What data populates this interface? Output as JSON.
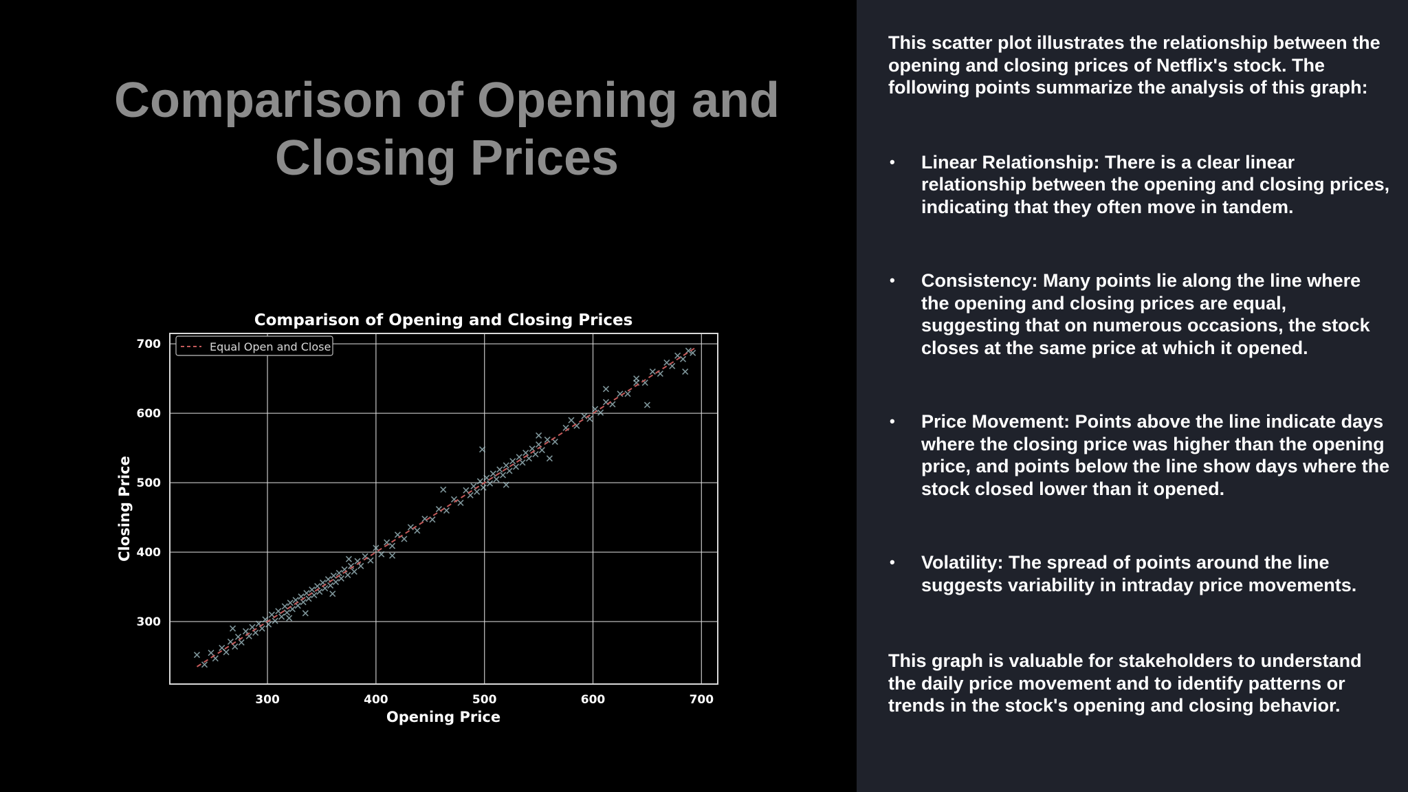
{
  "slide": {
    "title": "Comparison of Opening and Closing Prices"
  },
  "description": {
    "intro": "This scatter plot illustrates the relationship between the opening and closing prices of Netflix's stock. The following points summarize the analysis of this graph:",
    "bullets": [
      "Linear Relationship: There is a clear linear relationship between the opening and closing prices, indicating that they often move in tandem.",
      "Consistency: Many points lie along the line where the opening and closing prices are equal, suggesting that on numerous occasions, the stock closes at the same price at which it opened.",
      "Price Movement: Points above the line indicate days where the closing price was higher than the opening price, and points below the line show days where the stock closed lower than it opened.",
      "Volatility: The spread of points around the line suggests variability in intraday price movements."
    ],
    "bullet_symbol": "•",
    "outro": "This graph is valuable for stakeholders to understand the daily price movement and to identify patterns or trends in the stock's opening and closing behavior."
  },
  "colors": {
    "background": "#000000",
    "panel": "#1f222b",
    "title": "#8c8c8c",
    "text": "#ffffff",
    "points": "#a9c8cf",
    "reference_line": "#c45a5a",
    "grid": "#d9d9d9"
  },
  "chart_data": {
    "type": "scatter",
    "title": "Comparison of Opening and Closing Prices",
    "xlabel": "Opening Price",
    "ylabel": "Closing Price",
    "xlim": [
      210,
      715
    ],
    "ylim": [
      210,
      715
    ],
    "xticks": [
      300,
      400,
      500,
      600,
      700
    ],
    "yticks": [
      300,
      400,
      500,
      600,
      700
    ],
    "grid": true,
    "legend": {
      "position": "top-left",
      "entries": [
        "Equal Open and Close"
      ]
    },
    "marker": "x",
    "reference_line": {
      "name": "Equal Open and Close",
      "style": "dashed",
      "from": [
        235,
        235
      ],
      "to": [
        695,
        695
      ]
    },
    "points": [
      [
        235,
        252
      ],
      [
        242,
        238
      ],
      [
        248,
        255
      ],
      [
        252,
        247
      ],
      [
        258,
        262
      ],
      [
        262,
        256
      ],
      [
        266,
        271
      ],
      [
        270,
        264
      ],
      [
        273,
        278
      ],
      [
        276,
        270
      ],
      [
        280,
        286
      ],
      [
        283,
        279
      ],
      [
        286,
        292
      ],
      [
        289,
        284
      ],
      [
        292,
        297
      ],
      [
        295,
        290
      ],
      [
        298,
        303
      ],
      [
        301,
        296
      ],
      [
        304,
        310
      ],
      [
        307,
        301
      ],
      [
        310,
        315
      ],
      [
        313,
        307
      ],
      [
        316,
        322
      ],
      [
        318,
        313
      ],
      [
        321,
        327
      ],
      [
        323,
        318
      ],
      [
        326,
        331
      ],
      [
        328,
        323
      ],
      [
        331,
        336
      ],
      [
        333,
        328
      ],
      [
        336,
        341
      ],
      [
        338,
        333
      ],
      [
        341,
        346
      ],
      [
        343,
        338
      ],
      [
        346,
        351
      ],
      [
        348,
        343
      ],
      [
        351,
        356
      ],
      [
        353,
        348
      ],
      [
        356,
        361
      ],
      [
        358,
        352
      ],
      [
        361,
        366
      ],
      [
        363,
        357
      ],
      [
        366,
        370
      ],
      [
        368,
        362
      ],
      [
        371,
        375
      ],
      [
        374,
        367
      ],
      [
        377,
        380
      ],
      [
        380,
        372
      ],
      [
        383,
        387
      ],
      [
        386,
        380
      ],
      [
        390,
        394
      ],
      [
        395,
        388
      ],
      [
        400,
        406
      ],
      [
        405,
        397
      ],
      [
        410,
        414
      ],
      [
        415,
        409
      ],
      [
        420,
        425
      ],
      [
        426,
        419
      ],
      [
        432,
        436
      ],
      [
        438,
        431
      ],
      [
        445,
        448
      ],
      [
        452,
        447
      ],
      [
        458,
        462
      ],
      [
        465,
        460
      ],
      [
        472,
        476
      ],
      [
        478,
        471
      ],
      [
        483,
        489
      ],
      [
        487,
        482
      ],
      [
        490,
        495
      ],
      [
        493,
        487
      ],
      [
        496,
        502
      ],
      [
        499,
        493
      ],
      [
        502,
        507
      ],
      [
        505,
        499
      ],
      [
        508,
        513
      ],
      [
        511,
        505
      ],
      [
        514,
        519
      ],
      [
        517,
        511
      ],
      [
        520,
        525
      ],
      [
        523,
        517
      ],
      [
        526,
        531
      ],
      [
        529,
        523
      ],
      [
        532,
        537
      ],
      [
        535,
        529
      ],
      [
        538,
        543
      ],
      [
        541,
        535
      ],
      [
        544,
        549
      ],
      [
        547,
        541
      ],
      [
        550,
        555
      ],
      [
        553,
        547
      ],
      [
        558,
        562
      ],
      [
        565,
        559
      ],
      [
        575,
        579
      ],
      [
        585,
        582
      ],
      [
        592,
        596
      ],
      [
        597,
        592
      ],
      [
        602,
        606
      ],
      [
        607,
        601
      ],
      [
        612,
        616
      ],
      [
        618,
        613
      ],
      [
        625,
        628
      ],
      [
        632,
        628
      ],
      [
        640,
        644
      ],
      [
        648,
        644
      ],
      [
        655,
        660
      ],
      [
        662,
        657
      ],
      [
        668,
        673
      ],
      [
        673,
        668
      ],
      [
        678,
        683
      ],
      [
        683,
        678
      ],
      [
        688,
        690
      ],
      [
        692,
        687
      ],
      [
        268,
        290
      ],
      [
        320,
        305
      ],
      [
        360,
        340
      ],
      [
        375,
        390
      ],
      [
        415,
        395
      ],
      [
        462,
        490
      ],
      [
        498,
        548
      ],
      [
        520,
        497
      ],
      [
        560,
        535
      ],
      [
        580,
        590
      ],
      [
        612,
        635
      ],
      [
        650,
        612
      ],
      [
        685,
        660
      ],
      [
        640,
        650
      ],
      [
        550,
        568
      ],
      [
        335,
        312
      ]
    ]
  }
}
